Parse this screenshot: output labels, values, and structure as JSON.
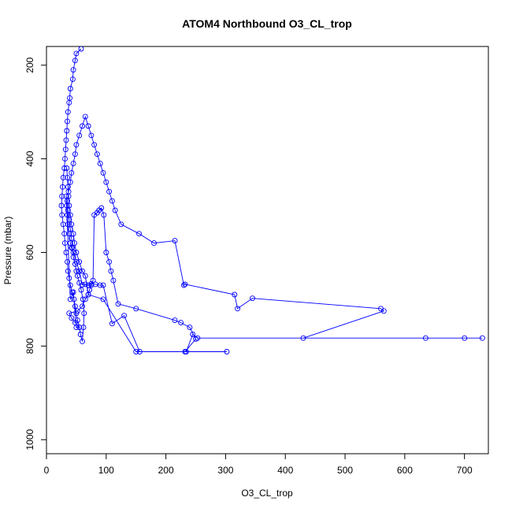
{
  "chart_data": {
    "type": "line",
    "title": "ATOM4 Northbound O3_CL_trop",
    "xlabel": "O3_CL_trop",
    "ylabel": "Pressure (mbar)",
    "xlim": [
      0,
      740
    ],
    "ylim": [
      1030,
      160
    ],
    "y_reversed": true,
    "xticks": [
      0,
      100,
      200,
      300,
      400,
      500,
      600,
      700
    ],
    "yticks": [
      200,
      400,
      600,
      800,
      1000
    ],
    "series_color": "#0000ff",
    "marker": "open-circle",
    "x": [
      58,
      50,
      48,
      45,
      44,
      40,
      39,
      38,
      36,
      35,
      34,
      33,
      32,
      31,
      30,
      28,
      27,
      26,
      25,
      26,
      28,
      30,
      31,
      33,
      35,
      36,
      38,
      40,
      43,
      46,
      48,
      50,
      52,
      55,
      57,
      60,
      62,
      63,
      61,
      58,
      55,
      52,
      50,
      48,
      45,
      43,
      42,
      40,
      38,
      36,
      35,
      37,
      40,
      42,
      45,
      48,
      50,
      55,
      60,
      65,
      70,
      75,
      80,
      85,
      90,
      95,
      100,
      105,
      110,
      115,
      125,
      155,
      180,
      215,
      230,
      232,
      315,
      320,
      345,
      560,
      565,
      430,
      635,
      700,
      730,
      253,
      245,
      234,
      302,
      156,
      130,
      110,
      95,
      90,
      82,
      75,
      70,
      65,
      60,
      55,
      50,
      45,
      42,
      40,
      38,
      36,
      35,
      34,
      33,
      40,
      45,
      50,
      55,
      48,
      42,
      38,
      52,
      60,
      65,
      70,
      72,
      75,
      78,
      80,
      85,
      88,
      92,
      96,
      100,
      105,
      108,
      112,
      120,
      150,
      215,
      225,
      240,
      250,
      232,
      150,
      95,
      70,
      65,
      60,
      55,
      50,
      47,
      45,
      42,
      40,
      38,
      37,
      36,
      35,
      34
    ],
    "y": [
      165,
      175,
      190,
      210,
      230,
      250,
      270,
      280,
      300,
      320,
      340,
      360,
      380,
      400,
      420,
      440,
      460,
      480,
      500,
      520,
      540,
      560,
      580,
      600,
      620,
      640,
      655,
      670,
      685,
      700,
      715,
      730,
      745,
      760,
      775,
      790,
      760,
      730,
      700,
      680,
      665,
      650,
      640,
      625,
      610,
      590,
      570,
      550,
      530,
      510,
      490,
      470,
      450,
      430,
      410,
      390,
      370,
      350,
      330,
      310,
      330,
      350,
      370,
      390,
      410,
      430,
      450,
      470,
      490,
      510,
      540,
      560,
      580,
      575,
      670,
      668,
      690,
      720,
      698,
      720,
      725,
      783,
      783,
      783,
      783,
      783,
      775,
      812,
      812,
      812,
      735,
      752,
      670,
      670,
      668,
      667,
      670,
      668,
      669,
      640,
      620,
      600,
      590,
      580,
      560,
      540,
      520,
      500,
      480,
      700,
      685,
      760,
      760,
      750,
      740,
      730,
      725,
      715,
      700,
      690,
      680,
      670,
      660,
      520,
      515,
      510,
      505,
      520,
      600,
      620,
      640,
      660,
      710,
      720,
      745,
      750,
      760,
      785,
      812,
      812,
      700,
      690,
      650,
      640,
      620,
      600,
      580,
      560,
      540,
      520,
      500,
      480,
      460,
      440,
      420
    ]
  }
}
